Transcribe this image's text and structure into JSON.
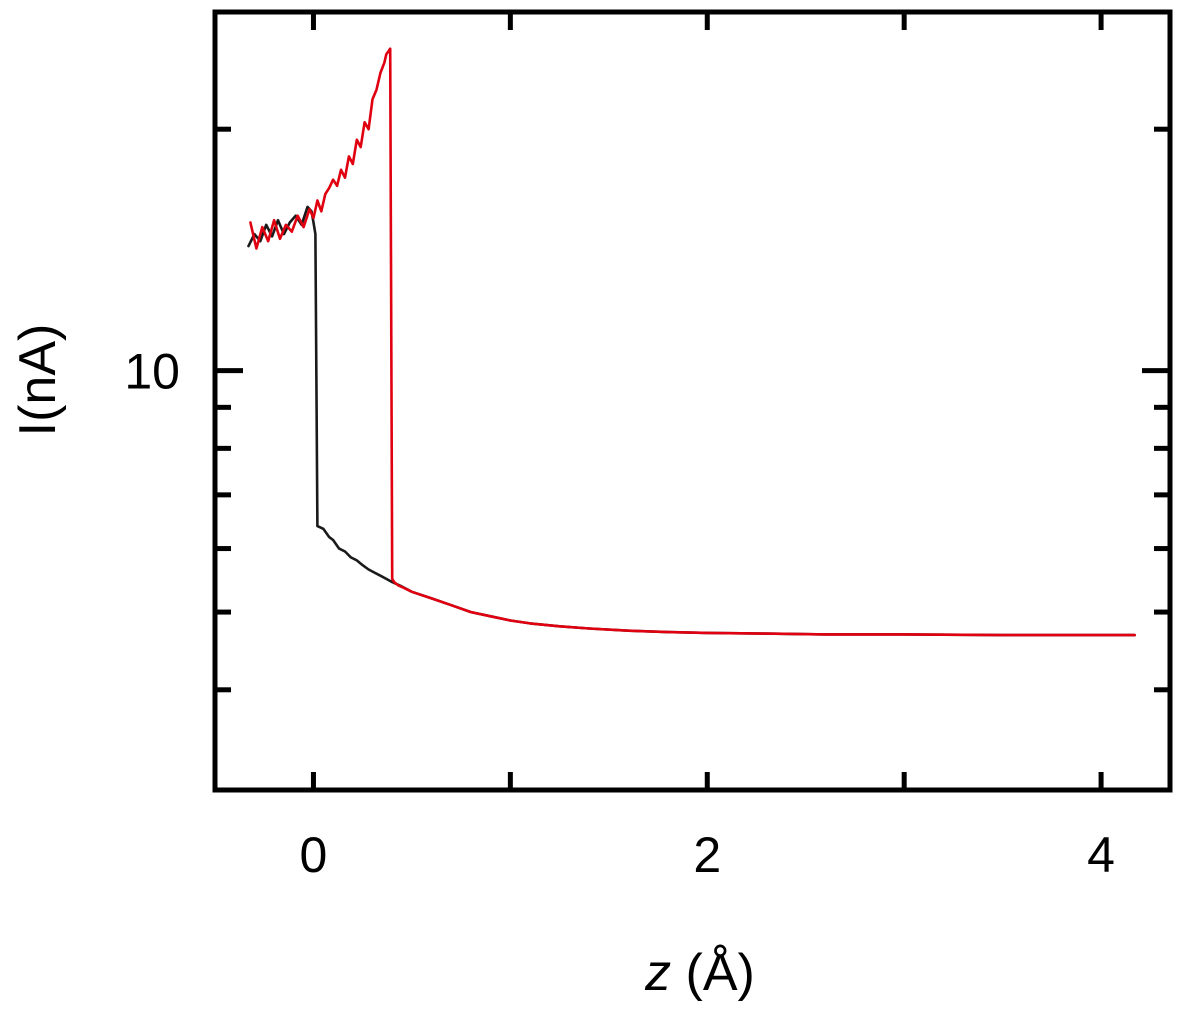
{
  "chart_data": {
    "type": "line",
    "xlabel_var": "z",
    "xlabel_unit": " (Å)",
    "ylabel": "I(nA)",
    "xlim": [
      -0.5,
      4.35
    ],
    "ylim": [
      3.0,
      28.0
    ],
    "yscale": "log",
    "x_ticks": [
      0,
      2,
      4
    ],
    "x_ticks_minor": [
      1,
      3
    ],
    "y_ticks": [
      10
    ],
    "y_ticks_minor": [
      4,
      5,
      6,
      7,
      8,
      9,
      20
    ],
    "grid": false,
    "colors": {
      "black_series": "#1a1a1a",
      "red_series": "#e00010"
    },
    "series": [
      {
        "color": "#1a1a1a",
        "x": [
          -0.33,
          -0.3,
          -0.27,
          -0.24,
          -0.21,
          -0.18,
          -0.15,
          -0.12,
          -0.09,
          -0.06,
          -0.03,
          -0.01,
          0.0,
          0.01,
          0.02,
          0.05,
          0.08,
          0.1,
          0.13,
          0.16,
          0.19,
          0.22,
          0.25,
          0.28,
          0.31,
          0.34,
          0.37,
          0.4,
          0.45,
          0.5,
          0.6,
          0.7,
          0.8,
          0.9,
          1.0,
          1.1,
          1.25,
          1.4,
          1.6,
          1.8,
          2.0,
          2.3,
          2.6,
          3.0,
          3.5,
          4.0,
          4.17
        ],
        "y": [
          14.3,
          14.8,
          14.5,
          15.2,
          14.7,
          15.4,
          14.8,
          15.3,
          15.6,
          15.2,
          16.0,
          15.8,
          15.3,
          14.8,
          6.4,
          6.35,
          6.2,
          6.15,
          6.0,
          5.95,
          5.85,
          5.8,
          5.72,
          5.65,
          5.6,
          5.55,
          5.5,
          5.45,
          5.38,
          5.3,
          5.2,
          5.1,
          5.0,
          4.94,
          4.88,
          4.84,
          4.8,
          4.77,
          4.74,
          4.72,
          4.71,
          4.7,
          4.69,
          4.69,
          4.68,
          4.68,
          4.68
        ]
      },
      {
        "color": "#e00010",
        "x": [
          -0.32,
          -0.29,
          -0.26,
          -0.23,
          -0.2,
          -0.17,
          -0.14,
          -0.11,
          -0.08,
          -0.05,
          -0.02,
          0.0,
          0.02,
          0.04,
          0.06,
          0.08,
          0.1,
          0.12,
          0.14,
          0.16,
          0.18,
          0.2,
          0.22,
          0.24,
          0.26,
          0.28,
          0.3,
          0.32,
          0.34,
          0.36,
          0.37,
          0.38,
          0.39,
          0.4,
          0.41,
          0.43,
          0.46,
          0.5,
          0.6,
          0.7,
          0.8,
          0.9,
          1.0,
          1.1,
          1.25,
          1.4,
          1.6,
          1.8,
          2.0,
          2.3,
          2.6,
          3.0,
          3.5,
          4.0,
          4.17
        ],
        "y": [
          15.3,
          14.2,
          15.1,
          14.5,
          15.4,
          14.6,
          15.2,
          14.9,
          15.6,
          15.1,
          15.9,
          15.5,
          16.3,
          15.8,
          16.6,
          16.9,
          17.3,
          17.0,
          17.8,
          17.4,
          18.5,
          18.1,
          19.4,
          19.0,
          20.4,
          20.0,
          21.8,
          22.4,
          23.5,
          24.2,
          24.8,
          25.0,
          25.2,
          5.5,
          5.45,
          5.4,
          5.36,
          5.3,
          5.2,
          5.1,
          5.0,
          4.94,
          4.88,
          4.84,
          4.8,
          4.77,
          4.74,
          4.72,
          4.71,
          4.7,
          4.69,
          4.69,
          4.68,
          4.68,
          4.68
        ]
      }
    ]
  }
}
